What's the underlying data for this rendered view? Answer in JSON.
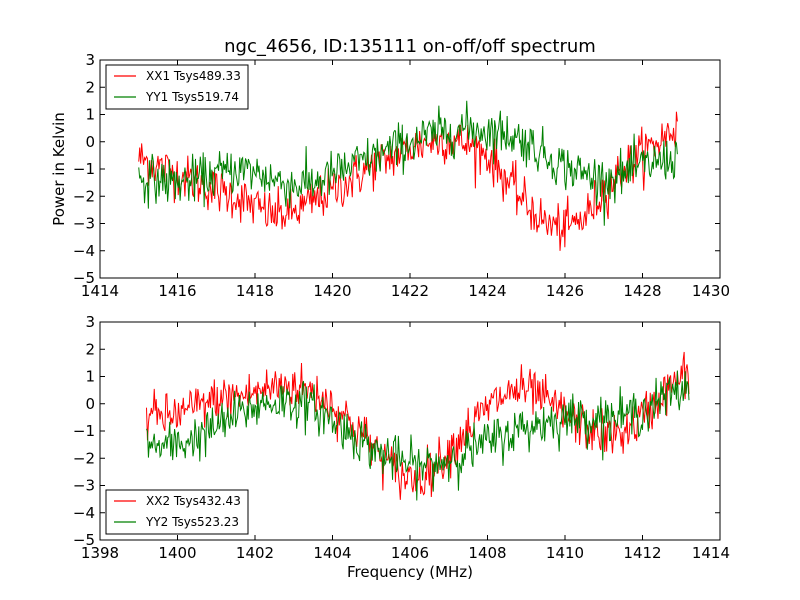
{
  "chart_data": [
    {
      "type": "line",
      "title": "ngc_4656, ID:135111 on-off/off spectrum",
      "xlabel": "",
      "ylabel": "Power in Kelvin",
      "xlim": [
        1414,
        1430
      ],
      "ylim": [
        -5,
        3
      ],
      "x_ticks": [
        1414,
        1416,
        1418,
        1420,
        1422,
        1424,
        1426,
        1428,
        1430
      ],
      "y_ticks": [
        -5,
        -4,
        -3,
        -2,
        -1,
        0,
        1,
        2,
        3
      ],
      "x_tick_labels": [
        "1414",
        "1416",
        "1418",
        "1420",
        "1422",
        "1424",
        "1426",
        "1428",
        "1430"
      ],
      "y_tick_labels": [
        "−5",
        "−4",
        "−3",
        "−2",
        "−1",
        "0",
        "1",
        "2",
        "3"
      ],
      "grid": false,
      "legend_position": "top-left",
      "series": [
        {
          "name": "XX1 Tsys489.33",
          "color": "#ff0000",
          "x": [
            1415.0,
            1415.5,
            1416.0,
            1416.5,
            1417.0,
            1417.5,
            1418.0,
            1418.5,
            1419.0,
            1419.5,
            1420.0,
            1420.5,
            1421.0,
            1421.5,
            1422.0,
            1422.5,
            1423.0,
            1423.5,
            1424.0,
            1424.5,
            1425.0,
            1425.5,
            1426.0,
            1426.5,
            1427.0,
            1427.5,
            1428.0,
            1428.5,
            1428.9
          ],
          "y": [
            -0.6,
            -0.9,
            -1.2,
            -1.5,
            -1.8,
            -2.0,
            -2.4,
            -2.7,
            -2.6,
            -2.2,
            -1.8,
            -1.4,
            -0.9,
            -0.6,
            -0.2,
            0.0,
            0.1,
            -0.1,
            -0.5,
            -1.4,
            -2.3,
            -3.0,
            -3.2,
            -2.8,
            -1.8,
            -1.0,
            -0.4,
            0.1,
            0.6
          ]
        },
        {
          "name": "YY1 Tsys519.74",
          "color": "#008000",
          "x": [
            1415.0,
            1415.5,
            1416.0,
            1416.5,
            1417.0,
            1417.5,
            1418.0,
            1418.5,
            1419.0,
            1419.5,
            1420.0,
            1420.5,
            1421.0,
            1421.5,
            1422.0,
            1422.5,
            1423.0,
            1423.5,
            1424.0,
            1424.5,
            1425.0,
            1425.5,
            1426.0,
            1426.5,
            1427.0,
            1427.5,
            1428.0,
            1428.5,
            1428.9
          ],
          "y": [
            -1.3,
            -1.4,
            -1.5,
            -1.4,
            -1.2,
            -1.0,
            -1.1,
            -1.4,
            -1.6,
            -1.5,
            -1.2,
            -0.9,
            -0.6,
            -0.3,
            0.0,
            0.2,
            0.4,
            0.5,
            0.4,
            0.3,
            0.0,
            -0.5,
            -0.9,
            -1.2,
            -1.4,
            -1.2,
            -0.9,
            -0.7,
            -0.6
          ]
        }
      ]
    },
    {
      "type": "line",
      "title": "",
      "xlabel": "Frequency (MHz)",
      "ylabel": "",
      "xlim": [
        1398,
        1414
      ],
      "ylim": [
        -5,
        3
      ],
      "x_ticks": [
        1398,
        1400,
        1402,
        1404,
        1406,
        1408,
        1410,
        1412,
        1414
      ],
      "y_ticks": [
        -5,
        -4,
        -3,
        -2,
        -1,
        0,
        1,
        2,
        3
      ],
      "x_tick_labels": [
        "1398",
        "1400",
        "1402",
        "1404",
        "1406",
        "1408",
        "1410",
        "1412",
        "1414"
      ],
      "y_tick_labels": [
        "−5",
        "−4",
        "−3",
        "−2",
        "−1",
        "0",
        "1",
        "2",
        "3"
      ],
      "grid": false,
      "legend_position": "bottom-left",
      "series": [
        {
          "name": "XX2 Tsys432.43",
          "color": "#ff0000",
          "x": [
            1399.2,
            1399.7,
            1400.2,
            1400.7,
            1401.2,
            1401.7,
            1402.2,
            1402.7,
            1403.2,
            1403.7,
            1404.2,
            1404.7,
            1405.2,
            1405.7,
            1406.2,
            1406.7,
            1407.2,
            1407.7,
            1408.2,
            1408.7,
            1409.2,
            1409.7,
            1410.2,
            1410.7,
            1411.2,
            1411.7,
            1412.2,
            1412.7,
            1413.2
          ],
          "y": [
            -0.4,
            -0.5,
            -0.3,
            0.0,
            0.2,
            0.3,
            0.5,
            0.7,
            0.6,
            0.3,
            -0.3,
            -1.0,
            -1.8,
            -2.6,
            -2.8,
            -2.2,
            -1.4,
            -0.6,
            0.1,
            0.5,
            0.4,
            -0.1,
            -0.6,
            -1.0,
            -1.2,
            -0.9,
            -0.2,
            0.6,
            1.2
          ]
        },
        {
          "name": "YY2 Tsys523.23",
          "color": "#008000",
          "x": [
            1399.2,
            1399.7,
            1400.2,
            1400.7,
            1401.2,
            1401.7,
            1402.2,
            1402.7,
            1403.2,
            1403.7,
            1404.2,
            1404.7,
            1405.2,
            1405.7,
            1406.2,
            1406.7,
            1407.2,
            1407.7,
            1408.2,
            1408.7,
            1409.2,
            1409.7,
            1410.2,
            1410.7,
            1411.2,
            1411.7,
            1412.2,
            1412.7,
            1413.2
          ],
          "y": [
            -1.5,
            -1.6,
            -1.4,
            -1.1,
            -0.7,
            -0.3,
            0.0,
            0.1,
            0.0,
            -0.3,
            -0.8,
            -1.3,
            -1.8,
            -2.1,
            -2.3,
            -2.2,
            -1.9,
            -1.6,
            -1.3,
            -1.0,
            -0.8,
            -0.6,
            -0.5,
            -0.5,
            -0.5,
            -0.4,
            -0.1,
            0.3,
            0.6
          ]
        }
      ]
    }
  ]
}
